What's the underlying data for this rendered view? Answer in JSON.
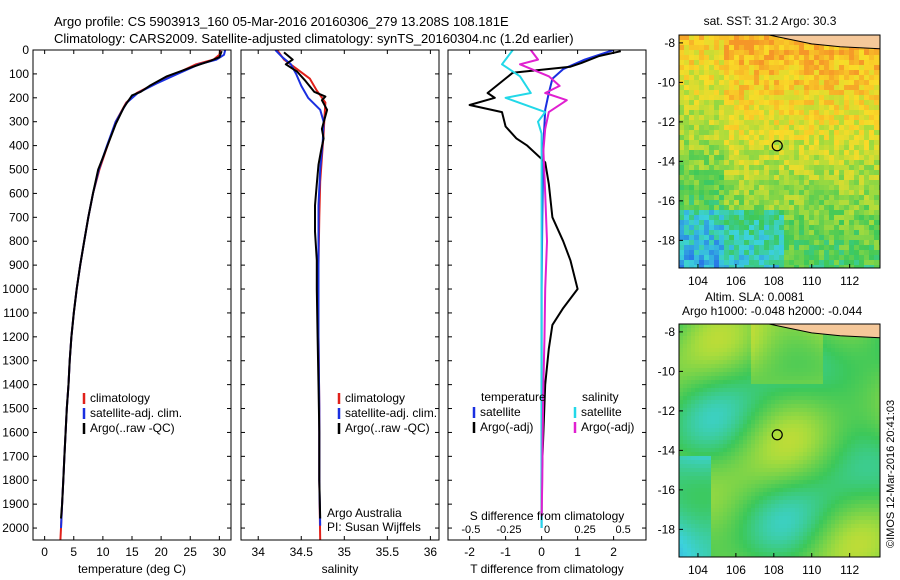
{
  "header": {
    "line1": "Argo profile: CS 5903913_160 05-Mar-2016 20160306_279 13.208S 108.181E",
    "line2": "Climatology: CARS2009. Satellite-adjusted climatology: synTS_20160304.nc (1.2d earlier)"
  },
  "stamp": "©IMOS 12-Mar-2016 20:41:03",
  "colors": {
    "climatology": "#e0201a",
    "satellite": "#1a2fe0",
    "argo": "#000000",
    "s_satellite": "#22d8e8",
    "s_argo": "#e020d0",
    "land": "#f5c89a"
  },
  "chart_data": [
    {
      "type": "line",
      "id": "temperature",
      "xlabel": "temperature (deg C)",
      "ylabel": "",
      "xlim": [
        -2,
        32
      ],
      "ylim": [
        2050,
        0
      ],
      "xticks": [
        "0",
        "5",
        "10",
        "15",
        "20",
        "25",
        "30"
      ],
      "yticks": [
        "0",
        "100",
        "200",
        "300",
        "400",
        "500",
        "600",
        "700",
        "800",
        "900",
        "1000",
        "1100",
        "1200",
        "1300",
        "1400",
        "1500",
        "1600",
        "1700",
        "1800",
        "1900",
        "2000"
      ],
      "legend": [
        "climatology",
        "satellite-adj. clim.",
        "Argo(..raw -QC)"
      ],
      "legend_position": "lower-center",
      "series": [
        {
          "name": "climatology",
          "color": "#e0201a",
          "points": [
            [
              30.2,
              0
            ],
            [
              30.0,
              20
            ],
            [
              29.0,
              40
            ],
            [
              26,
              60
            ],
            [
              22.5,
              100
            ],
            [
              19,
              140
            ],
            [
              15.8,
              180
            ],
            [
              14,
              220
            ],
            [
              12.2,
              300
            ],
            [
              10.8,
              400
            ],
            [
              9.4,
              500
            ],
            [
              8.3,
              600
            ],
            [
              7.5,
              700
            ],
            [
              6.8,
              800
            ],
            [
              6.1,
              900
            ],
            [
              5.5,
              1000
            ],
            [
              5.0,
              1100
            ],
            [
              4.6,
              1200
            ],
            [
              4.3,
              1300
            ],
            [
              4.1,
              1400
            ],
            [
              3.8,
              1500
            ],
            [
              3.6,
              1600
            ],
            [
              3.4,
              1700
            ],
            [
              3.2,
              1800
            ],
            [
              3.0,
              1900
            ],
            [
              2.8,
              2000
            ],
            [
              2.7,
              2050
            ]
          ]
        },
        {
          "name": "satellite-adj. clim.",
          "color": "#1a2fe0",
          "points": [
            [
              31.0,
              0
            ],
            [
              30.8,
              20
            ],
            [
              29.5,
              40
            ],
            [
              26.5,
              60
            ],
            [
              22.8,
              100
            ],
            [
              19.2,
              140
            ],
            [
              16,
              180
            ],
            [
              14.1,
              220
            ],
            [
              12.2,
              300
            ],
            [
              10.7,
              400
            ],
            [
              9.3,
              500
            ],
            [
              8.3,
              600
            ],
            [
              7.5,
              700
            ],
            [
              6.8,
              800
            ],
            [
              6.1,
              900
            ],
            [
              5.5,
              1000
            ],
            [
              5.0,
              1100
            ],
            [
              4.6,
              1200
            ],
            [
              4.3,
              1300
            ],
            [
              4.1,
              1400
            ],
            [
              3.8,
              1500
            ],
            [
              3.6,
              1600
            ],
            [
              3.4,
              1700
            ],
            [
              3.2,
              1800
            ],
            [
              3.0,
              1900
            ],
            [
              2.8,
              2000
            ]
          ]
        },
        {
          "name": "Argo(..raw -QC)",
          "color": "#000000",
          "points": [
            [
              30.4,
              5
            ],
            [
              30.0,
              30
            ],
            [
              28.5,
              45
            ],
            [
              25.5,
              70
            ],
            [
              21,
              110
            ],
            [
              18,
              150
            ],
            [
              16.5,
              175
            ],
            [
              15,
              190
            ],
            [
              13.6,
              240
            ],
            [
              12.2,
              310
            ],
            [
              11.1,
              380
            ],
            [
              10.0,
              450
            ],
            [
              9.2,
              500
            ],
            [
              8.3,
              600
            ],
            [
              7.5,
              700
            ],
            [
              6.8,
              800
            ],
            [
              6.1,
              900
            ],
            [
              5.5,
              1000
            ],
            [
              5.0,
              1100
            ],
            [
              4.6,
              1200
            ],
            [
              4.3,
              1300
            ],
            [
              4.1,
              1400
            ],
            [
              3.8,
              1500
            ],
            [
              3.6,
              1600
            ],
            [
              3.4,
              1700
            ],
            [
              3.2,
              1800
            ],
            [
              3.0,
              1900
            ],
            [
              2.8,
              1960
            ]
          ]
        }
      ]
    },
    {
      "type": "line",
      "id": "salinity",
      "xlabel": "salinity",
      "ylabel": "",
      "xlim": [
        33.8,
        36.1
      ],
      "ylim": [
        2050,
        0
      ],
      "xticks": [
        "34",
        "34.5",
        "35",
        "35.5",
        "36"
      ],
      "legend": [
        "climatology",
        "satellite-adj. clim.",
        "Argo(..raw -QC)"
      ],
      "legend_position": "lower-right",
      "annotation": [
        "Argo Australia",
        "PI: Susan Wijffels"
      ],
      "series": [
        {
          "name": "climatology",
          "color": "#e0201a",
          "points": [
            [
              34.22,
              0
            ],
            [
              34.3,
              40
            ],
            [
              34.45,
              80
            ],
            [
              34.6,
              120
            ],
            [
              34.68,
              170
            ],
            [
              34.78,
              220
            ],
            [
              34.77,
              280
            ],
            [
              34.76,
              350
            ],
            [
              34.74,
              450
            ],
            [
              34.72,
              550
            ],
            [
              34.71,
              700
            ],
            [
              34.7,
              900
            ],
            [
              34.7,
              1200
            ],
            [
              34.71,
              1500
            ],
            [
              34.71,
              1800
            ],
            [
              34.72,
              2050
            ]
          ]
        },
        {
          "name": "satellite-adj. clim.",
          "color": "#1a2fe0",
          "points": [
            [
              34.2,
              0
            ],
            [
              34.28,
              30
            ],
            [
              34.38,
              60
            ],
            [
              34.44,
              100
            ],
            [
              34.5,
              150
            ],
            [
              34.58,
              200
            ],
            [
              34.72,
              250
            ],
            [
              34.76,
              300
            ],
            [
              34.75,
              380
            ],
            [
              34.72,
              500
            ],
            [
              34.7,
              650
            ],
            [
              34.7,
              900
            ],
            [
              34.7,
              1200
            ],
            [
              34.71,
              1500
            ],
            [
              34.71,
              1800
            ],
            [
              34.72,
              1990
            ]
          ]
        },
        {
          "name": "Argo(..raw -QC)",
          "color": "#000000",
          "points": [
            [
              34.3,
              10
            ],
            [
              34.4,
              40
            ],
            [
              34.32,
              60
            ],
            [
              34.45,
              90
            ],
            [
              34.55,
              130
            ],
            [
              34.65,
              175
            ],
            [
              34.78,
              195
            ],
            [
              34.74,
              210
            ],
            [
              34.8,
              250
            ],
            [
              34.77,
              290
            ],
            [
              34.74,
              330
            ],
            [
              34.76,
              370
            ],
            [
              34.73,
              420
            ],
            [
              34.7,
              480
            ],
            [
              34.68,
              560
            ],
            [
              34.66,
              650
            ],
            [
              34.66,
              760
            ],
            [
              34.68,
              880
            ],
            [
              34.68,
              1000
            ],
            [
              34.69,
              1200
            ],
            [
              34.7,
              1400
            ],
            [
              34.71,
              1600
            ],
            [
              34.71,
              1800
            ],
            [
              34.72,
              1960
            ]
          ]
        }
      ]
    },
    {
      "type": "line",
      "id": "differences",
      "xlabel": "T difference from climatology",
      "xlabel_top": "S difference from climatology",
      "xlim": [
        -2.6,
        2.9
      ],
      "ylim": [
        2050,
        0
      ],
      "xticks": [
        "-2",
        "-1",
        "0",
        "1",
        "2"
      ],
      "xticks_top": [
        "-0.5",
        "-0.25",
        "0",
        "0.25",
        "0.5"
      ],
      "legend_groups": [
        {
          "title": "temperature",
          "items": [
            "satellite",
            "Argo(-adj)"
          ]
        },
        {
          "title": "salinity",
          "items": [
            "satellite",
            "Argo(-adj)"
          ]
        }
      ],
      "series": [
        {
          "name": "temperature satellite",
          "color": "#1a2fe0",
          "points": [
            [
              2.0,
              0
            ],
            [
              1.2,
              40
            ],
            [
              0.6,
              80
            ],
            [
              0.3,
              120
            ],
            [
              0.2,
              180
            ],
            [
              0.1,
              250
            ],
            [
              0.05,
              400
            ],
            [
              0.02,
              700
            ],
            [
              0.0,
              1000
            ],
            [
              0.0,
              1500
            ],
            [
              0.0,
              2000
            ]
          ]
        },
        {
          "name": "temperature Argo(-adj)",
          "color": "#000000",
          "points": [
            [
              2.2,
              5
            ],
            [
              1.6,
              25
            ],
            [
              1.1,
              55
            ],
            [
              0.8,
              70
            ],
            [
              -0.8,
              95
            ],
            [
              -1.5,
              180
            ],
            [
              -1.3,
              200
            ],
            [
              -2.0,
              230
            ],
            [
              -1.1,
              260
            ],
            [
              -1.0,
              320
            ],
            [
              -0.7,
              370
            ],
            [
              -0.4,
              400
            ],
            [
              0.1,
              470
            ],
            [
              0.2,
              560
            ],
            [
              0.3,
              700
            ],
            [
              0.6,
              800
            ],
            [
              0.8,
              880
            ],
            [
              1.0,
              1000
            ],
            [
              0.6,
              1080
            ],
            [
              0.3,
              1150
            ],
            [
              0.2,
              1250
            ],
            [
              0.1,
              1400
            ],
            [
              0.05,
              1600
            ],
            [
              0.0,
              1800
            ],
            [
              0.0,
              1950
            ]
          ]
        },
        {
          "name": "salinity satellite",
          "color": "#22d8e8",
          "points": [
            [
              -0.8,
              0
            ],
            [
              -1.1,
              60
            ],
            [
              -0.6,
              110
            ],
            [
              -0.3,
              180
            ],
            [
              -1.0,
              200
            ],
            [
              0.1,
              260
            ],
            [
              -0.1,
              300
            ],
            [
              0.0,
              350
            ],
            [
              0.0,
              500
            ],
            [
              0.0,
              800
            ],
            [
              0.0,
              1200
            ],
            [
              0.0,
              1600
            ],
            [
              0.0,
              2000
            ]
          ]
        },
        {
          "name": "salinity Argo(-adj)",
          "color": "#e020d0",
          "points": [
            [
              -0.3,
              0
            ],
            [
              -0.1,
              40
            ],
            [
              -0.6,
              60
            ],
            [
              0.2,
              110
            ],
            [
              0.5,
              150
            ],
            [
              0.1,
              180
            ],
            [
              0.7,
              210
            ],
            [
              0.2,
              260
            ],
            [
              0.1,
              330
            ],
            [
              0.05,
              420
            ],
            [
              0.1,
              600
            ],
            [
              0.15,
              800
            ],
            [
              0.1,
              1000
            ],
            [
              0.08,
              1200
            ],
            [
              0.05,
              1400
            ],
            [
              0.03,
              1600
            ],
            [
              0.02,
              1800
            ],
            [
              0.0,
              1950
            ]
          ]
        }
      ]
    },
    {
      "type": "heatmap",
      "id": "sst-map",
      "title": "sat. SST: 31.2  Argo: 30.3",
      "xlim": [
        103,
        113.6
      ],
      "ylim": [
        -19.4,
        -7.6
      ],
      "xticks": [
        "104",
        "106",
        "108",
        "110",
        "112"
      ],
      "yticks": [
        "-8",
        "-10",
        "-12",
        "-14",
        "-16",
        "-18"
      ],
      "marker": [
        108.18,
        -13.21
      ]
    },
    {
      "type": "heatmap",
      "id": "sla-map",
      "title": "Altim. SLA: 0.0081",
      "subtitle": "Argo h1000: -0.048  h2000: -0.044",
      "xlim": [
        103,
        113.6
      ],
      "ylim": [
        -19.4,
        -7.6
      ],
      "xticks": [
        "104",
        "106",
        "108",
        "110",
        "112"
      ],
      "yticks": [
        "-8",
        "-10",
        "-12",
        "-14",
        "-16",
        "-18"
      ],
      "marker": [
        108.18,
        -13.21
      ]
    }
  ]
}
